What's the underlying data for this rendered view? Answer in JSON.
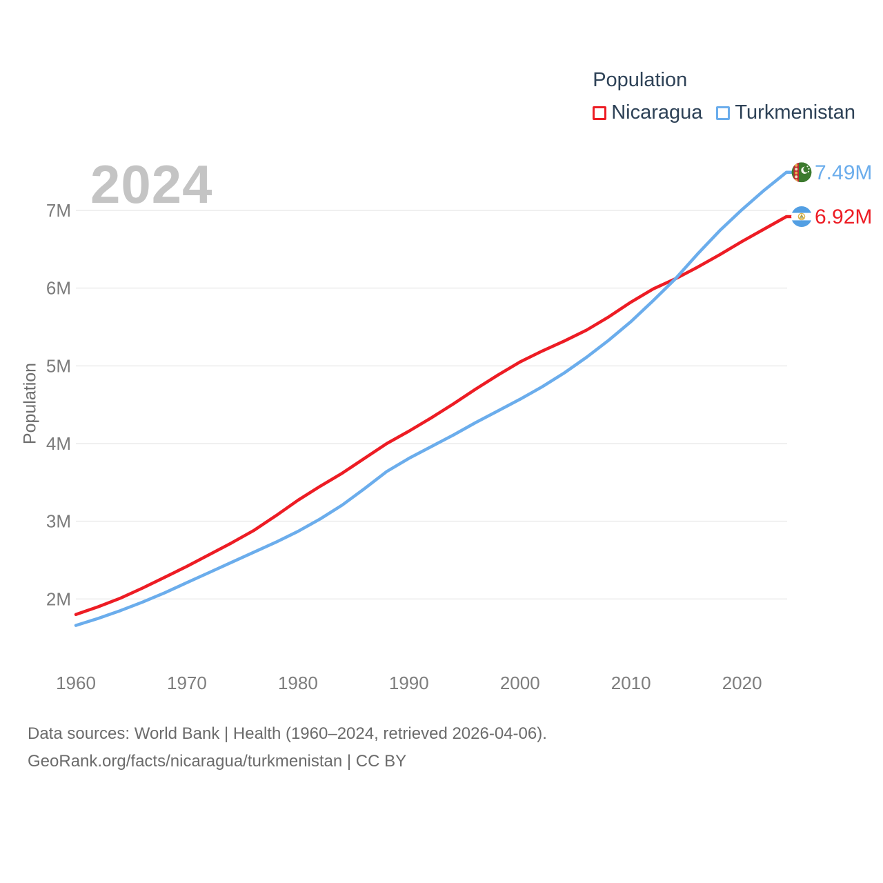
{
  "watermark": {
    "year": "2024"
  },
  "legend": {
    "title": "Population",
    "items": [
      {
        "label": "Nicaragua",
        "color": "#ed1c24"
      },
      {
        "label": "Turkmenistan",
        "color": "#6badec"
      }
    ]
  },
  "y_axis": {
    "title": "Population",
    "ticks": [
      "2M",
      "3M",
      "4M",
      "5M",
      "6M",
      "7M"
    ]
  },
  "x_axis": {
    "ticks": [
      "1960",
      "1970",
      "1980",
      "1990",
      "2000",
      "2010",
      "2020"
    ]
  },
  "footer": {
    "line1": "Data sources: World Bank | Health (1960–2024, retrieved 2026-04-06).",
    "line2": "GeoRank.org/facts/nicaragua/turkmenistan | CC BY"
  },
  "chart_data": {
    "type": "line",
    "title": "Population",
    "ylabel": "Population",
    "xlabel": "",
    "units": "millions",
    "grid": "horizontal",
    "legend_position": "top-right",
    "xlim": [
      1960,
      2024
    ],
    "ylim": [
      1.5,
      7.6
    ],
    "y_tick_values": [
      2,
      3,
      4,
      5,
      6,
      7
    ],
    "x_tick_values": [
      1960,
      1970,
      1980,
      1990,
      2000,
      2010,
      2020
    ],
    "x": [
      1960,
      1962,
      1964,
      1966,
      1968,
      1970,
      1972,
      1974,
      1976,
      1978,
      1980,
      1982,
      1984,
      1986,
      1988,
      1990,
      1992,
      1994,
      1996,
      1998,
      2000,
      2002,
      2004,
      2006,
      2008,
      2010,
      2012,
      2014,
      2016,
      2018,
      2020,
      2022,
      2024
    ],
    "series": [
      {
        "name": "Nicaragua",
        "color": "#ed1c24",
        "end_label": "6.92M",
        "end_value": 6.92,
        "flag_icon": "nicaragua-flag-icon",
        "values": [
          1.8,
          1.9,
          2.01,
          2.14,
          2.28,
          2.42,
          2.57,
          2.72,
          2.88,
          3.07,
          3.27,
          3.45,
          3.62,
          3.81,
          4.0,
          4.16,
          4.33,
          4.51,
          4.7,
          4.88,
          5.05,
          5.19,
          5.32,
          5.46,
          5.63,
          5.82,
          5.99,
          6.12,
          6.27,
          6.43,
          6.6,
          6.76,
          6.92
        ]
      },
      {
        "name": "Turkmenistan",
        "color": "#6badec",
        "end_label": "7.49M",
        "end_value": 7.49,
        "flag_icon": "turkmenistan-flag-icon",
        "values": [
          1.66,
          1.75,
          1.85,
          1.96,
          2.08,
          2.21,
          2.34,
          2.47,
          2.6,
          2.73,
          2.87,
          3.03,
          3.21,
          3.42,
          3.64,
          3.81,
          3.96,
          4.11,
          4.27,
          4.42,
          4.57,
          4.73,
          4.91,
          5.11,
          5.33,
          5.57,
          5.84,
          6.12,
          6.44,
          6.74,
          7.01,
          7.26,
          7.49
        ]
      }
    ]
  }
}
